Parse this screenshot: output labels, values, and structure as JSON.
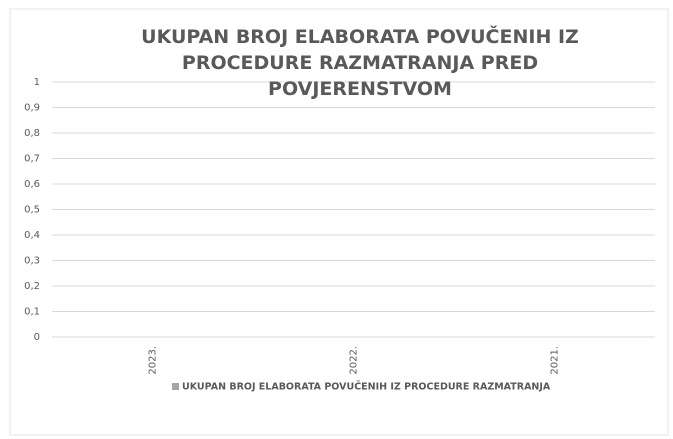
{
  "chart_data": {
    "type": "bar",
    "title": "UKUPAN BROJ ELABORATA POVUČENIH IZ PROCEDURE RAZMATRANJA PRED POVJERENSTVOM",
    "categories": [
      "2023.",
      "2022.",
      "2021."
    ],
    "series": [
      {
        "name": "UKUPAN BROJ ELABORATA POVUČENIH IZ PROCEDURE RAZMATRANJA",
        "color": "#a5a5a5",
        "values": [
          0,
          0,
          0
        ]
      }
    ],
    "ylim": [
      0,
      1
    ],
    "yticks": [
      0,
      {
        "value": 0.1,
        "label": "0,1"
      },
      {
        "value": 0.2,
        "label": "0,2"
      },
      {
        "value": 0.3,
        "label": "0,3"
      },
      {
        "value": 0.4,
        "label": "0,4"
      },
      {
        "value": 0.5,
        "label": "0,5"
      },
      {
        "value": 0.6,
        "label": "0,6"
      },
      {
        "value": 0.7,
        "label": "0,7"
      },
      {
        "value": 0.8,
        "label": "0,8"
      },
      {
        "value": 0.9,
        "label": "0,9"
      },
      1
    ],
    "grid": true,
    "legend": "bottom"
  }
}
